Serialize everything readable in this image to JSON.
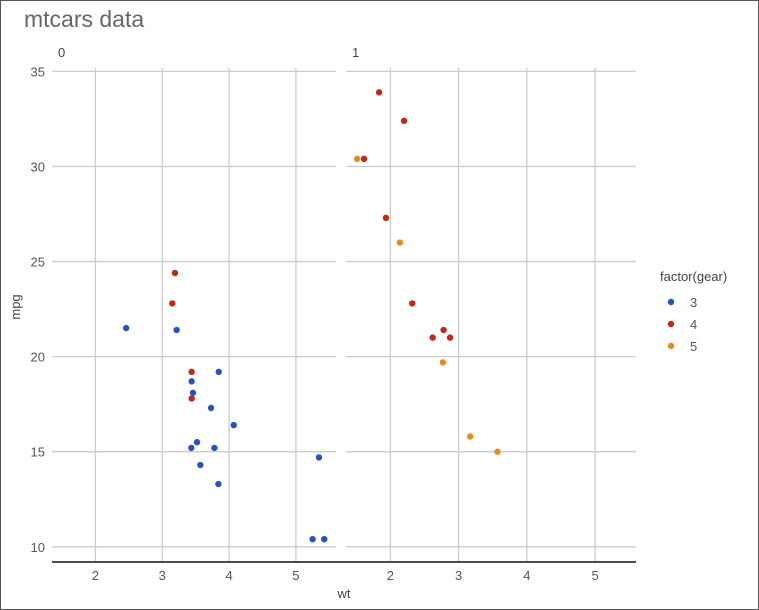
{
  "chart_data": {
    "type": "scatter",
    "title": "mtcars data",
    "xlabel": "wt",
    "ylabel": "mpg",
    "xlim": [
      1.35,
      5.6
    ],
    "ylim": [
      9.2,
      35.6
    ],
    "x_ticks": [
      "2",
      "3",
      "4",
      "5"
    ],
    "y_ticks": [
      "10",
      "15",
      "20",
      "25",
      "30",
      "35"
    ],
    "grid": true,
    "legend": {
      "title": "factor(gear)",
      "placement": "right",
      "entries": [
        {
          "label": "3",
          "color": "#2a52be"
        },
        {
          "label": "4",
          "color": "#c0281b"
        },
        {
          "label": "5",
          "color": "#e8891e"
        }
      ]
    },
    "facets": [
      {
        "label": "0",
        "points": [
          {
            "x": 2.46,
            "y": 21.5,
            "gear": "3"
          },
          {
            "x": 3.215,
            "y": 21.4,
            "gear": "3"
          },
          {
            "x": 3.44,
            "y": 18.7,
            "gear": "3"
          },
          {
            "x": 3.46,
            "y": 18.1,
            "gear": "3"
          },
          {
            "x": 3.57,
            "y": 14.3,
            "gear": "3"
          },
          {
            "x": 4.07,
            "y": 16.4,
            "gear": "3"
          },
          {
            "x": 3.73,
            "y": 17.3,
            "gear": "3"
          },
          {
            "x": 3.78,
            "y": 15.2,
            "gear": "3"
          },
          {
            "x": 5.25,
            "y": 10.4,
            "gear": "3"
          },
          {
            "x": 5.424,
            "y": 10.4,
            "gear": "3"
          },
          {
            "x": 5.345,
            "y": 14.7,
            "gear": "3"
          },
          {
            "x": 3.52,
            "y": 15.5,
            "gear": "3"
          },
          {
            "x": 3.435,
            "y": 15.2,
            "gear": "3"
          },
          {
            "x": 3.84,
            "y": 13.3,
            "gear": "3"
          },
          {
            "x": 3.845,
            "y": 19.2,
            "gear": "3"
          },
          {
            "x": 3.19,
            "y": 24.4,
            "gear": "4"
          },
          {
            "x": 3.15,
            "y": 22.8,
            "gear": "4"
          },
          {
            "x": 3.44,
            "y": 19.2,
            "gear": "4"
          },
          {
            "x": 3.44,
            "y": 17.8,
            "gear": "4"
          }
        ]
      },
      {
        "label": "1",
        "points": [
          {
            "x": 2.62,
            "y": 21.0,
            "gear": "4"
          },
          {
            "x": 2.875,
            "y": 21.0,
            "gear": "4"
          },
          {
            "x": 2.32,
            "y": 22.8,
            "gear": "4"
          },
          {
            "x": 2.2,
            "y": 32.4,
            "gear": "4"
          },
          {
            "x": 1.615,
            "y": 30.4,
            "gear": "4"
          },
          {
            "x": 1.835,
            "y": 33.9,
            "gear": "4"
          },
          {
            "x": 1.935,
            "y": 27.3,
            "gear": "4"
          },
          {
            "x": 2.78,
            "y": 21.4,
            "gear": "4"
          },
          {
            "x": 2.14,
            "y": 26.0,
            "gear": "5"
          },
          {
            "x": 1.513,
            "y": 30.4,
            "gear": "5"
          },
          {
            "x": 3.17,
            "y": 15.8,
            "gear": "5"
          },
          {
            "x": 2.77,
            "y": 19.7,
            "gear": "5"
          },
          {
            "x": 3.57,
            "y": 15.0,
            "gear": "5"
          }
        ]
      }
    ]
  }
}
